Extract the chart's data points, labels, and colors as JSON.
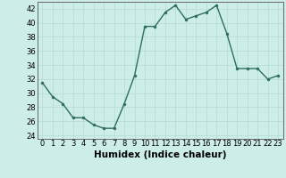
{
  "title": "",
  "xlabel": "Humidex (Indice chaleur)",
  "ylabel": "",
  "x": [
    0,
    1,
    2,
    3,
    4,
    5,
    6,
    7,
    8,
    9,
    10,
    11,
    12,
    13,
    14,
    15,
    16,
    17,
    18,
    19,
    20,
    21,
    22,
    23
  ],
  "y": [
    31.5,
    29.5,
    28.5,
    26.5,
    26.5,
    25.5,
    25.0,
    25.0,
    28.5,
    32.5,
    39.5,
    39.5,
    41.5,
    42.5,
    40.5,
    41.0,
    41.5,
    42.5,
    38.5,
    33.5,
    33.5,
    33.5,
    32.0,
    32.5
  ],
  "line_color": "#2e6e5e",
  "marker_color": "#2e6e5e",
  "bg_color": "#cdeee8",
  "grid_color": "#b8ddd7",
  "ylim": [
    23.5,
    43.0
  ],
  "yticks": [
    24,
    26,
    28,
    30,
    32,
    34,
    36,
    38,
    40,
    42
  ],
  "xticks": [
    0,
    1,
    2,
    3,
    4,
    5,
    6,
    7,
    8,
    9,
    10,
    11,
    12,
    13,
    14,
    15,
    16,
    17,
    18,
    19,
    20,
    21,
    22,
    23
  ],
  "tick_fontsize": 6.0,
  "xlabel_fontsize": 7.5,
  "line_width": 1.0,
  "marker_size": 2.0
}
